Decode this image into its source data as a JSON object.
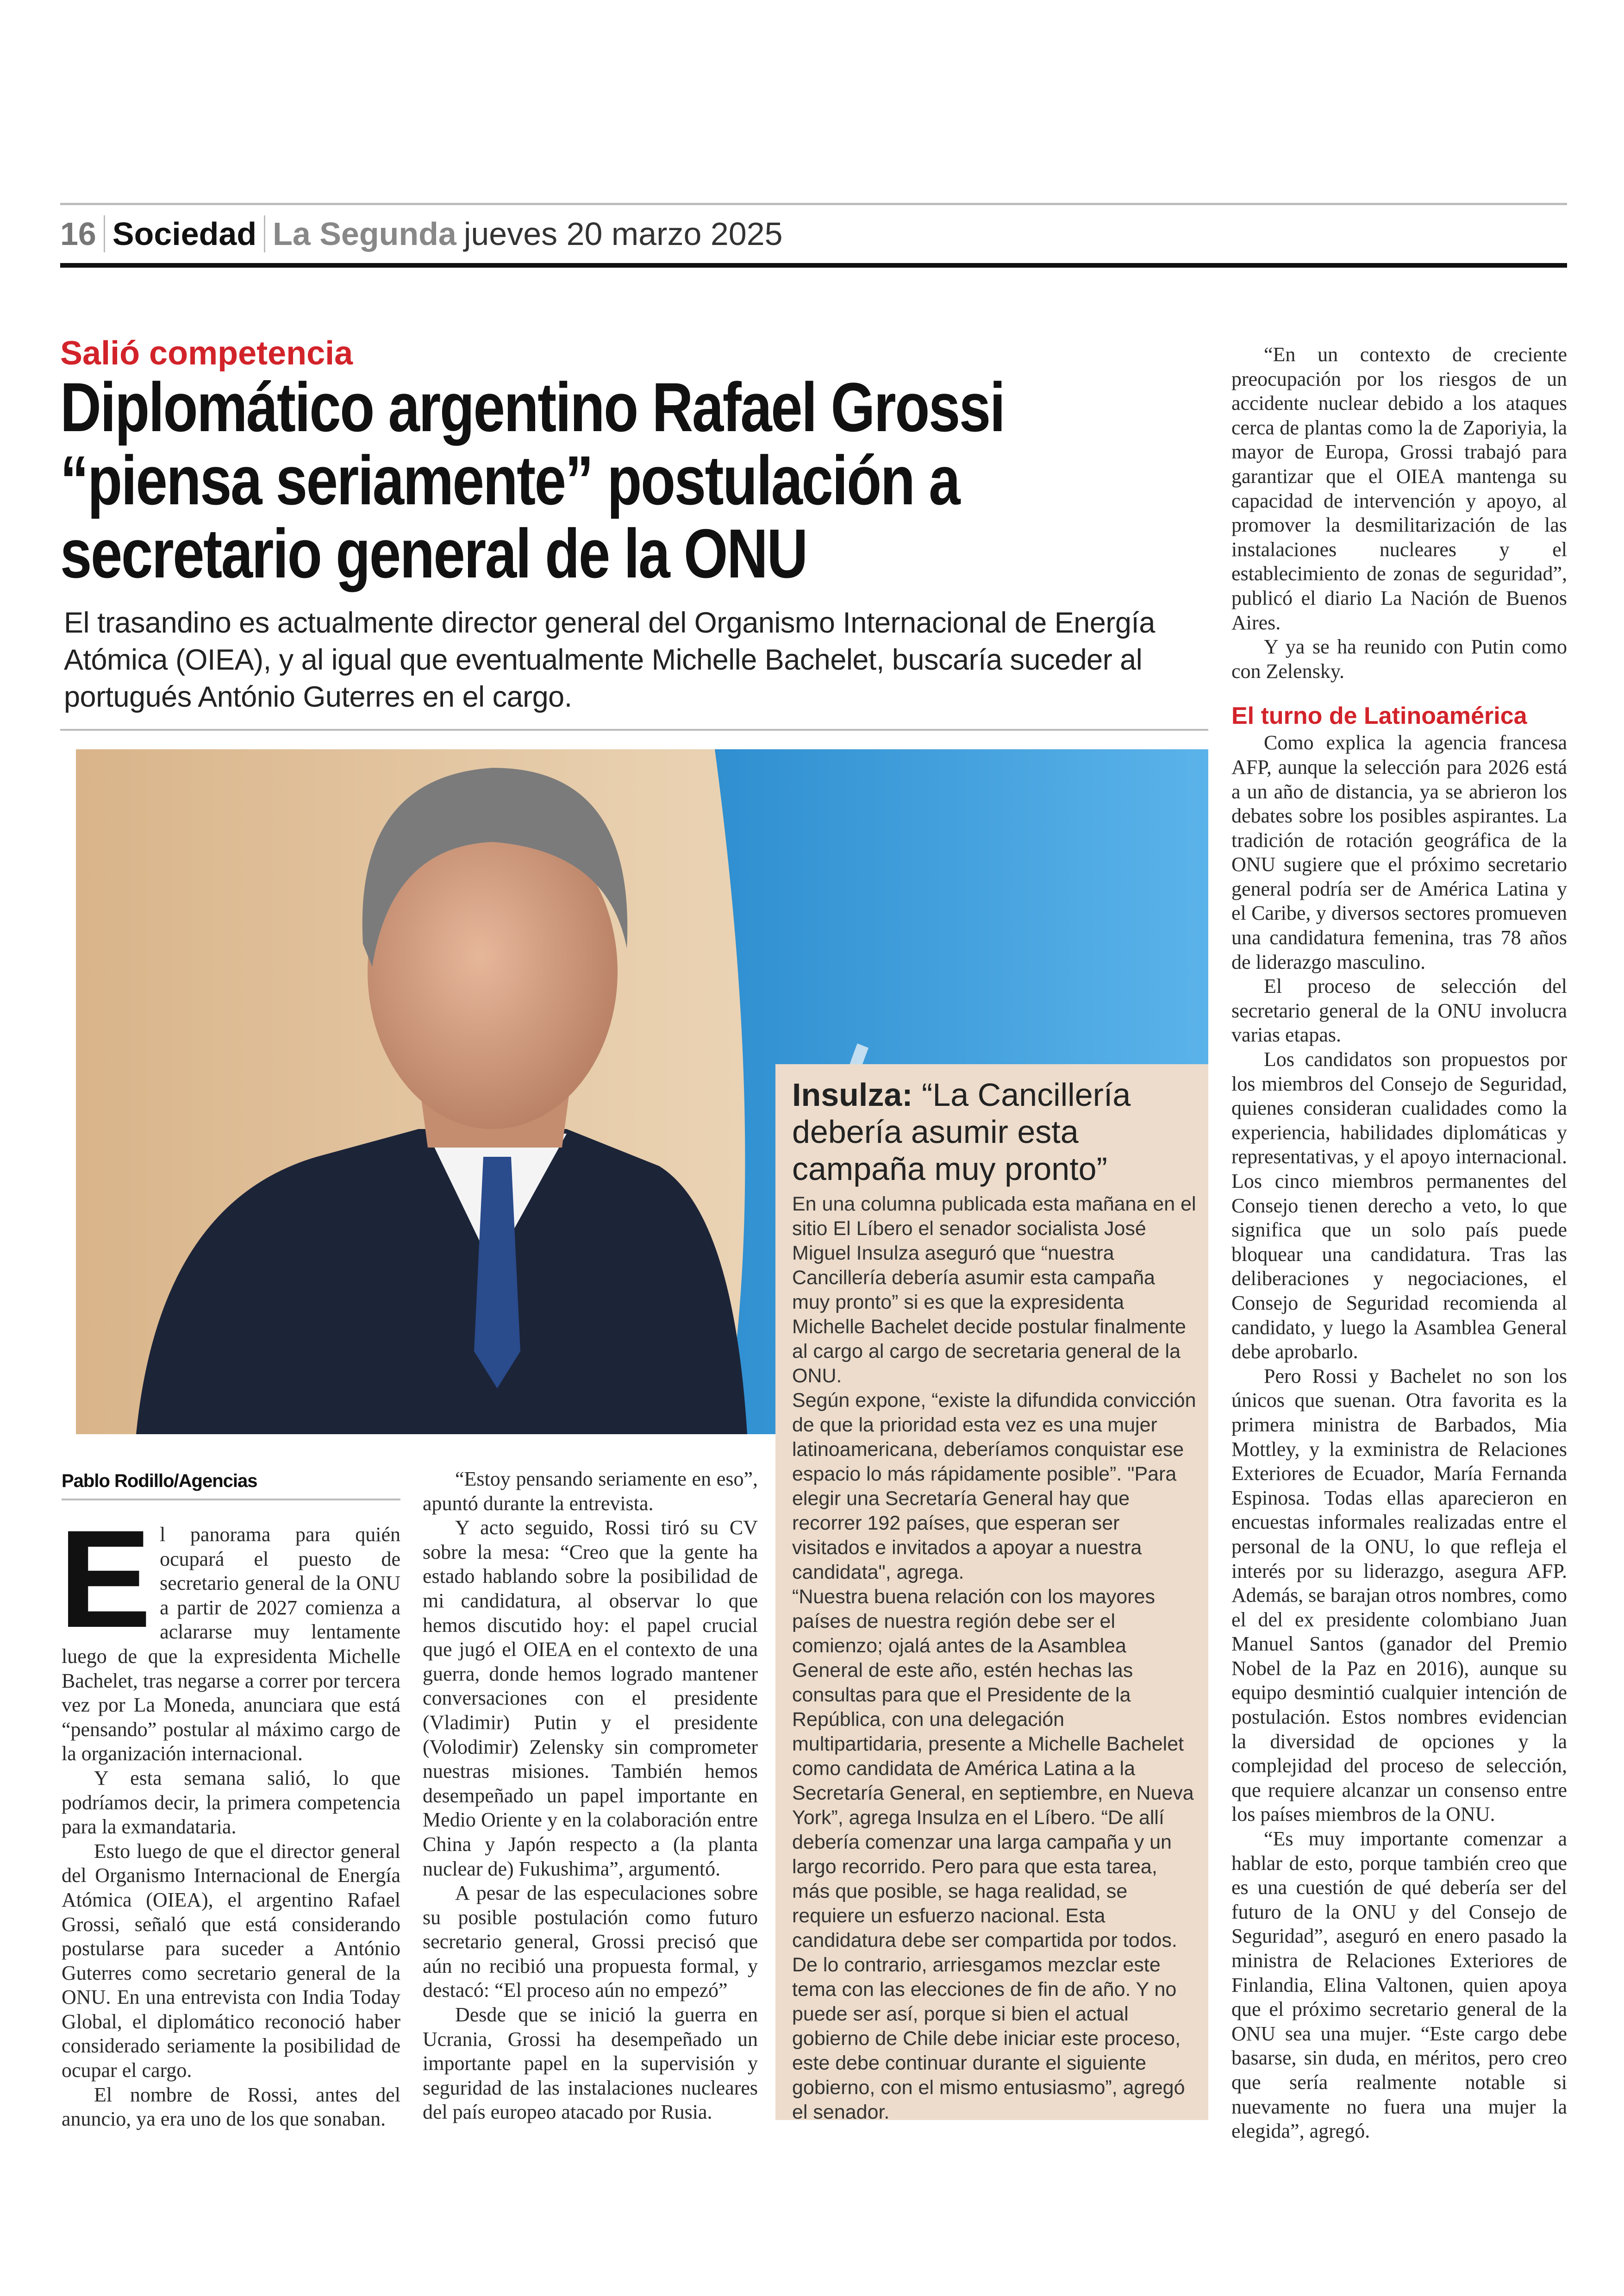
{
  "masthead": {
    "page_number": "16",
    "section": "Sociedad",
    "publication": "La Segunda",
    "date": "jueves 20 marzo 2025"
  },
  "article": {
    "kicker": "Salió competencia",
    "headline": [
      "Diplomático argentino Rafael Grossi",
      "“piensa seriamente” postulación a",
      "secretario general de la ONU"
    ],
    "deck": "El trasandino es actualmente director general del Organismo Internacional de Energía Atómica (OIEA), y al igual que eventualmente Michelle Bachelet, buscaría suceder al portugués António Guterres en el cargo.",
    "byline": "Pablo Rodillo/Agencias",
    "dropcap": "E",
    "left_paragraphs": [
      "l panorama para quién ocupará el puesto de secretario general de la ONU a partir de 2027 comienza a aclararse muy lentamente luego de que la expresidenta Michelle Bachelet, tras negarse a correr por tercera vez por La Moneda, anunciara que está “pensando” postular al máximo cargo de la organización internacional.",
      "Y esta semana salió, lo que podríamos decir, la primera competencia para la exmandataria.",
      "Esto luego de que el director general del Organismo Internacional de Energía Atómica (OIEA), el argentino Rafael Grossi, señaló que está considerando postularse para suceder a António Guterres como secretario general de la ONU. En una entrevista con India Today Global, el diplomático reconoció haber considerado seriamente la posibilidad de ocupar el cargo.",
      "El nombre de Rossi, antes del anuncio, ya era uno de los que sonaban."
    ],
    "middle_paragraphs": [
      "“Estoy pensando seriamente en eso”, apuntó durante la entrevista.",
      "Y acto seguido, Rossi tiró su CV sobre la mesa: “Creo que la gente ha estado hablando sobre la posibilidad de mi candidatura, al observar lo que hemos discutido hoy: el papel crucial que jugó el OIEA en el contexto de una guerra, donde hemos logrado mantener conversaciones con el presidente (Vladimir) Putin y el presidente (Volodimir) Zelensky sin comprometer nuestras misiones. También hemos desempeñado un papel importante en Medio Oriente y en la colaboración entre China y Japón respecto a (la planta nuclear de) Fukushima”, argumentó.",
      "A pesar de las especulaciones sobre su posible postulación como futuro secretario general, Grossi precisó que aún no recibió una propuesta formal, y destacó: “El proceso aún no empezó”",
      "Desde que se inició la guerra en Ucrania, Grossi ha desempeñado un importante papel en la supervisión y seguridad de las instalaciones nucleares del país europeo atacado por Rusia."
    ],
    "right_paragraphs_1": [
      "“En un contexto de creciente preocupación por los riesgos de un accidente nuclear debido a los ataques cerca de plantas como la de Zaporiyia, la mayor de Europa, Grossi trabajó para garantizar que el OIEA mantenga su capacidad de intervención y apoyo, al promover la desmilitarización de las instalaciones nucleares y el establecimiento de zonas de seguridad”, publicó el diario La Nación de Buenos Aires.",
      "Y ya se ha reunido con Putin como con Zelensky."
    ],
    "subhead": "El turno de Latinoamérica",
    "right_paragraphs_2": [
      "Como explica la agencia francesa AFP, aunque la selección para 2026 está a un año de distancia, ya se abrieron los debates sobre los posibles aspirantes. La tradición de rotación geográfica de la ONU sugiere que el próximo secretario general podría ser de América Latina y el Caribe, y diversos sectores promueven una candidatura femenina, tras 78 años de liderazgo masculino.",
      "El proceso de selección del secretario general de la ONU involucra varias etapas.",
      "Los candidatos son propuestos por los miembros del Consejo de Seguridad, quienes consideran cualidades como la experiencia, habilidades diplomáticas y representativas, y el apoyo internacional. Los cinco miembros permanentes del Consejo tienen derecho a veto, lo que significa que un solo país puede bloquear una candidatura. Tras las deliberaciones y negociaciones, el Consejo de Seguridad recomienda al candidato, y luego la Asamblea General debe aprobarlo.",
      "Pero Rossi y Bachelet no son los únicos que suenan. Otra favorita es la primera ministra de Barbados, Mia Mottley, y la exministra de Relaciones Exteriores de Ecuador, María Fernanda Espinosa. Todas ellas aparecieron en encuestas informales realizadas entre el personal de la ONU, lo que refleja el interés por su liderazgo, asegura AFP. Además, se barajan otros nombres, como el del ex presidente colombiano Juan Manuel Santos (ganador del Premio Nobel de la Paz en 2016), aunque su equipo desmintió cualquier intención de postulación. Estos nombres evidencian la diversidad de opciones y la complejidad del proceso de selección, que requiere alcanzar un consenso entre los países miembros de la ONU.",
      "“Es muy importante comenzar a hablar de esto, porque también creo que es una cuestión de qué debería ser del futuro de la ONU y del Consejo de Seguridad”, aseguró en enero pasado la ministra de Relaciones Exteriores de Finlandia, Elina Valtonen, quien apoya que el próximo secretario general de la ONU sea una mujer. “Este cargo debe basarse, sin duda, en méritos, pero creo que sería realmente notable si nuevamente no fuera una mujer la elegida”, agregó."
    ]
  },
  "sidebar": {
    "title_bold": "Insulza:",
    "title_rest": " “La Cancillería debería asumir esta campaña muy pronto”",
    "paragraphs": [
      "En una columna publicada esta mañana en el sitio El Líbero el senador socialista José Miguel Insulza aseguró que “nuestra Cancillería debería asumir esta campaña muy pronto” si es que la expresidenta Michelle Bachelet decide postular finalmente al cargo al cargo de secretaria general de la ONU.",
      "Según expone, “existe la difundida convicción de que la prioridad esta vez es una mujer latinoamericana, deberíamos conquistar ese espacio lo más rápidamente posible”. \"Para elegir una Secretaría General hay que recorrer 192 países, que esperan ser visitados e invitados a apoyar a nuestra candidata\", agrega.",
      "“Nuestra buena relación con los mayores países de nuestra región debe ser el comienzo; ojalá antes de la Asamblea General de este año, estén hechas las consultas para que el Presidente de la República, con una delegación multipartidaria, presente a Michelle Bachelet como candidata de América Latina a la Secretaría General, en septiembre, en Nueva York”, agrega Insulza en el Líbero. “De allí debería comenzar una larga campaña y un largo recorrido. Pero para que esta tarea, más que posible, se haga realidad, se requiere un esfuerzo nacional. Esta candidatura debe ser compartida por todos. De lo contrario, arriesgamos mezclar este tema con las elecciones de fin de año. Y no puede ser así, porque si bien el actual gobierno de Chile debe iniciar este proceso, este debe continuar durante el siguiente gobierno, con el mismo entusiasmo”, agregó el senador."
    ],
    "background_color": "#eddccb"
  },
  "colors": {
    "accent_red": "#d2232a",
    "un_blue": "#3d9fdc"
  }
}
